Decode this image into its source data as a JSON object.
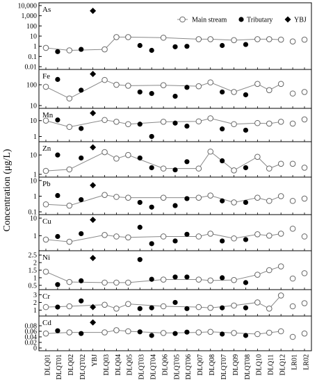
{
  "chart_data": {
    "type": "scatter",
    "ylabel": "Concentration (μg/L)",
    "legend_position": "top-right",
    "legend": [
      {
        "name": "Main stream",
        "marker": "open-circle-line"
      },
      {
        "name": "Tributary",
        "marker": "filled-circle"
      },
      {
        "name": "YBJ",
        "marker": "filled-diamond"
      }
    ],
    "x_labels": [
      "DLQ01",
      "DLQT01",
      "DLQ02",
      "DLQT02",
      "YBJ",
      "DLQ03",
      "DLQ04",
      "DLQ05",
      "DLQT03",
      "DLQT04",
      "DLQ06",
      "DLQT05",
      "DLQT06",
      "DLQ07",
      "DLQ08",
      "DLQT07",
      "DLQ09",
      "DLQT08",
      "DLQ10",
      "DLQ11",
      "DLQ12",
      "LR01",
      "LR02"
    ],
    "main_stream_positions": [
      "DLQ01",
      "DLQ02",
      "DLQ03",
      "DLQ04",
      "DLQ05",
      "DLQ06",
      "DLQ07",
      "DLQ08",
      "DLQ09",
      "DLQ10",
      "DLQ11",
      "DLQ12"
    ],
    "lr_positions": [
      "LR01",
      "LR02"
    ],
    "tributary_positions": [
      "DLQT01",
      "DLQT02",
      "DLQT03",
      "DLQT04",
      "DLQT05",
      "DLQT06",
      "DLQT07",
      "DLQT08"
    ],
    "ybj_position": "YBJ",
    "x_slots": [
      1,
      2,
      3,
      4,
      5,
      6,
      7,
      8,
      9,
      10,
      11,
      12,
      13,
      14,
      15,
      16,
      17,
      18,
      19,
      20,
      21,
      22,
      23
    ],
    "panels": [
      {
        "element": "As",
        "scale": "log",
        "ylim": [
          0.01,
          10000
        ],
        "ticks": [
          0.01,
          0.1,
          1,
          10,
          100,
          1000,
          10000
        ],
        "tick_labels": [
          "0.01",
          "0.1",
          "1",
          "10",
          "100",
          "1,000",
          "10,000"
        ],
        "main_stream": [
          {
            "x": 1,
            "y": 0.7
          },
          {
            "x": 3,
            "y": 0.4
          },
          {
            "x": 6,
            "y": 0.5
          },
          {
            "x": 7,
            "y": 8
          },
          {
            "x": 8,
            "y": 8
          },
          {
            "x": 11,
            "y": 7
          },
          {
            "x": 14,
            "y": 5
          },
          {
            "x": 15,
            "y": 5
          },
          {
            "x": 17,
            "y": 4
          },
          {
            "x": 19,
            "y": 5
          },
          {
            "x": 20,
            "y": 5
          },
          {
            "x": 21,
            "y": 4.5
          }
        ],
        "lr": [
          {
            "x": 22,
            "y": 3
          },
          {
            "x": 23,
            "y": 4.5
          }
        ],
        "tributary": [
          {
            "x": 2,
            "y": 0.3
          },
          {
            "x": 4,
            "y": 0.5
          },
          {
            "x": 9,
            "y": 1.2
          },
          {
            "x": 10,
            "y": 0.4
          },
          {
            "x": 12,
            "y": 0.9
          },
          {
            "x": 13,
            "y": 1
          },
          {
            "x": 16,
            "y": 1.2
          },
          {
            "x": 18,
            "y": 1.5
          }
        ],
        "ybj": {
          "x": 5,
          "y": 3000
        }
      },
      {
        "element": "Fe",
        "scale": "log",
        "ylim": [
          10,
          400
        ],
        "ticks": [
          10,
          100
        ],
        "tick_labels": [
          "10",
          "100"
        ],
        "main_stream": [
          {
            "x": 1,
            "y": 80
          },
          {
            "x": 3,
            "y": 22
          },
          {
            "x": 6,
            "y": 170
          },
          {
            "x": 7,
            "y": 100
          },
          {
            "x": 8,
            "y": 90
          },
          {
            "x": 11,
            "y": 95
          },
          {
            "x": 14,
            "y": 85
          },
          {
            "x": 15,
            "y": 130
          },
          {
            "x": 17,
            "y": 45
          },
          {
            "x": 19,
            "y": 110
          },
          {
            "x": 20,
            "y": 55
          },
          {
            "x": 21,
            "y": 110
          }
        ],
        "lr": [
          {
            "x": 22,
            "y": 38
          },
          {
            "x": 23,
            "y": 45
          }
        ],
        "tributary": [
          {
            "x": 2,
            "y": 180
          },
          {
            "x": 4,
            "y": 55
          },
          {
            "x": 9,
            "y": 45
          },
          {
            "x": 10,
            "y": 38
          },
          {
            "x": 12,
            "y": 28
          },
          {
            "x": 13,
            "y": 75
          },
          {
            "x": 16,
            "y": 45
          },
          {
            "x": 18,
            "y": 33
          }
        ],
        "ybj": {
          "x": 5,
          "y": 330
        }
      },
      {
        "element": "Mn",
        "scale": "log",
        "ylim": [
          0.7,
          40
        ],
        "ticks": [
          1,
          10
        ],
        "tick_labels": [
          "1",
          "10"
        ],
        "main_stream": [
          {
            "x": 1,
            "y": 10
          },
          {
            "x": 3,
            "y": 4
          },
          {
            "x": 6,
            "y": 11
          },
          {
            "x": 7,
            "y": 8.5
          },
          {
            "x": 8,
            "y": 6
          },
          {
            "x": 11,
            "y": 8.5
          },
          {
            "x": 14,
            "y": 9
          },
          {
            "x": 15,
            "y": 14
          },
          {
            "x": 17,
            "y": 6
          },
          {
            "x": 19,
            "y": 7
          },
          {
            "x": 20,
            "y": 6.5
          },
          {
            "x": 21,
            "y": 8.5
          }
        ],
        "lr": [
          {
            "x": 22,
            "y": 6.5
          },
          {
            "x": 23,
            "y": 12
          }
        ],
        "tributary": [
          {
            "x": 2,
            "y": 11
          },
          {
            "x": 4,
            "y": 3.2
          },
          {
            "x": 9,
            "y": 6
          },
          {
            "x": 10,
            "y": 1
          },
          {
            "x": 12,
            "y": 7
          },
          {
            "x": 13,
            "y": 4.5
          },
          {
            "x": 16,
            "y": 3
          },
          {
            "x": 18,
            "y": 2.5
          }
        ],
        "ybj": {
          "x": 5,
          "y": 30
        }
      },
      {
        "element": "Zn",
        "scale": "log",
        "ylim": [
          1,
          35
        ],
        "ticks": [
          1,
          10
        ],
        "tick_labels": [
          "1",
          "10"
        ],
        "main_stream": [
          {
            "x": 1,
            "y": 1.5
          },
          {
            "x": 3,
            "y": 1.8
          },
          {
            "x": 6,
            "y": 14
          },
          {
            "x": 7,
            "y": 6.5
          },
          {
            "x": 8,
            "y": 10
          },
          {
            "x": 11,
            "y": 2
          },
          {
            "x": 14,
            "y": 2
          },
          {
            "x": 15,
            "y": 15
          },
          {
            "x": 17,
            "y": 1.6
          },
          {
            "x": 19,
            "y": 8
          },
          {
            "x": 20,
            "y": 2
          },
          {
            "x": 21,
            "y": 3.5
          }
        ],
        "lr": [
          {
            "x": 22,
            "y": 3.5
          },
          {
            "x": 23,
            "y": 2.2
          }
        ],
        "tributary": [
          {
            "x": 2,
            "y": 10
          },
          {
            "x": 4,
            "y": 7
          },
          {
            "x": 9,
            "y": 7
          },
          {
            "x": 10,
            "y": 2.2
          },
          {
            "x": 12,
            "y": 1.7
          },
          {
            "x": 13,
            "y": 4.5
          },
          {
            "x": 16,
            "y": 5
          },
          {
            "x": 18,
            "y": 2.2
          }
        ],
        "ybj": {
          "x": 5,
          "y": 25
        }
      },
      {
        "element": "Pb",
        "scale": "log",
        "ylim": [
          0.1,
          11
        ],
        "ticks": [
          0.1,
          1,
          10
        ],
        "tick_labels": [
          "0.1",
          "1",
          "10"
        ],
        "main_stream": [
          {
            "x": 1,
            "y": 0.3
          },
          {
            "x": 3,
            "y": 0.25
          },
          {
            "x": 6,
            "y": 1.2
          },
          {
            "x": 7,
            "y": 0.9
          },
          {
            "x": 8,
            "y": 0.8
          },
          {
            "x": 11,
            "y": 0.8
          },
          {
            "x": 14,
            "y": 0.8
          },
          {
            "x": 15,
            "y": 1.1
          },
          {
            "x": 17,
            "y": 0.4
          },
          {
            "x": 19,
            "y": 0.8
          },
          {
            "x": 20,
            "y": 0.5
          },
          {
            "x": 21,
            "y": 1
          }
        ],
        "lr": [
          {
            "x": 22,
            "y": 0.5
          },
          {
            "x": 23,
            "y": 0.7
          }
        ],
        "tributary": [
          {
            "x": 2,
            "y": 1.1
          },
          {
            "x": 4,
            "y": 0.6
          },
          {
            "x": 9,
            "y": 0.4
          },
          {
            "x": 10,
            "y": 0.2
          },
          {
            "x": 12,
            "y": 0.25
          },
          {
            "x": 13,
            "y": 0.7
          },
          {
            "x": 16,
            "y": 0.5
          },
          {
            "x": 18,
            "y": 0.4
          }
        ],
        "ybj": {
          "x": 5,
          "y": 5
        }
      },
      {
        "element": "Cu",
        "scale": "log",
        "ylim": [
          0.2,
          11
        ],
        "ticks": [
          1,
          10
        ],
        "tick_labels": [
          "1",
          "10"
        ],
        "main_stream": [
          {
            "x": 1,
            "y": 0.6
          },
          {
            "x": 3,
            "y": 0.45
          },
          {
            "x": 6,
            "y": 1.1
          },
          {
            "x": 7,
            "y": 0.9
          },
          {
            "x": 8,
            "y": 0.8
          },
          {
            "x": 11,
            "y": 0.9
          },
          {
            "x": 14,
            "y": 0.9
          },
          {
            "x": 15,
            "y": 1.3
          },
          {
            "x": 17,
            "y": 0.7
          },
          {
            "x": 19,
            "y": 1.2
          },
          {
            "x": 20,
            "y": 1
          },
          {
            "x": 21,
            "y": 1.3
          }
        ],
        "lr": [
          {
            "x": 22,
            "y": 2.5
          },
          {
            "x": 23,
            "y": 0.9
          }
        ],
        "tributary": [
          {
            "x": 2,
            "y": 0.9
          },
          {
            "x": 4,
            "y": 1.3
          },
          {
            "x": 9,
            "y": 3
          },
          {
            "x": 10,
            "y": 0.35
          },
          {
            "x": 12,
            "y": 0.5
          },
          {
            "x": 13,
            "y": 1.2
          },
          {
            "x": 16,
            "y": 0.5
          },
          {
            "x": 18,
            "y": 0.6
          }
        ],
        "ybj": {
          "x": 5,
          "y": 8
        }
      },
      {
        "element": "Ni",
        "scale": "linear",
        "ylim": [
          0.4,
          2.6
        ],
        "ticks": [
          0.5,
          1,
          1.5,
          2,
          2.5
        ],
        "tick_labels": [
          "0.5",
          "1",
          "1.5",
          "2",
          "2.5"
        ],
        "main_stream": [
          {
            "x": 1,
            "y": 1.4
          },
          {
            "x": 3,
            "y": 0.72
          },
          {
            "x": 6,
            "y": 0.68
          },
          {
            "x": 7,
            "y": 0.68
          },
          {
            "x": 8,
            "y": 0.68
          },
          {
            "x": 11,
            "y": 0.88
          },
          {
            "x": 14,
            "y": 0.88
          },
          {
            "x": 15,
            "y": 0.82
          },
          {
            "x": 17,
            "y": 0.85
          },
          {
            "x": 19,
            "y": 1.2
          },
          {
            "x": 20,
            "y": 1.5
          },
          {
            "x": 21,
            "y": 1.75
          }
        ],
        "lr": [
          {
            "x": 22,
            "y": 0.95
          },
          {
            "x": 23,
            "y": 1.3
          }
        ],
        "tributary": [
          {
            "x": 2,
            "y": 0.55
          },
          {
            "x": 4,
            "y": 0.8
          },
          {
            "x": 9,
            "y": 2.2
          },
          {
            "x": 10,
            "y": 0.9
          },
          {
            "x": 12,
            "y": 1.05
          },
          {
            "x": 13,
            "y": 1.05
          },
          {
            "x": 16,
            "y": 1
          },
          {
            "x": 18,
            "y": 0.68
          }
        ],
        "ybj": {
          "x": 5,
          "y": 2.3
        }
      },
      {
        "element": "Cr",
        "scale": "linear",
        "ylim": [
          0.6,
          3.3
        ],
        "ticks": [
          1,
          2,
          3
        ],
        "tick_labels": [
          "1",
          "2",
          "3"
        ],
        "main_stream": [
          {
            "x": 1,
            "y": 1.4
          },
          {
            "x": 3,
            "y": 1.5
          },
          {
            "x": 6,
            "y": 1.7
          },
          {
            "x": 7,
            "y": 1.2
          },
          {
            "x": 8,
            "y": 1.8
          },
          {
            "x": 11,
            "y": 1.5
          },
          {
            "x": 14,
            "y": 1.4
          },
          {
            "x": 15,
            "y": 1.3
          },
          {
            "x": 17,
            "y": 1.6
          },
          {
            "x": 19,
            "y": 2
          },
          {
            "x": 20,
            "y": 1.2
          },
          {
            "x": 21,
            "y": 2.9
          }
        ],
        "lr": [
          {
            "x": 22,
            "y": 1.5
          },
          {
            "x": 23,
            "y": 1.9
          }
        ],
        "tributary": [
          {
            "x": 2,
            "y": 1.4
          },
          {
            "x": 4,
            "y": 2.2
          },
          {
            "x": 9,
            "y": 1.2
          },
          {
            "x": 10,
            "y": 1.3
          },
          {
            "x": 12,
            "y": 2
          },
          {
            "x": 13,
            "y": 1.2
          },
          {
            "x": 16,
            "y": 1.3
          },
          {
            "x": 18,
            "y": 1.3
          }
        ],
        "ybj": {
          "x": 5,
          "y": 1.4
        }
      },
      {
        "element": "Cd",
        "scale": "linear",
        "ylim": [
          0,
          0.105
        ],
        "ticks": [
          0,
          0.02,
          0.04,
          0.06,
          0.08
        ],
        "tick_labels": [
          "0",
          "0.02",
          "0.04",
          "0.06",
          "0.08"
        ],
        "main_stream": [
          {
            "x": 1,
            "y": 0.052
          },
          {
            "x": 3,
            "y": 0.056
          },
          {
            "x": 6,
            "y": 0.056
          },
          {
            "x": 7,
            "y": 0.064
          },
          {
            "x": 8,
            "y": 0.06
          },
          {
            "x": 11,
            "y": 0.054
          },
          {
            "x": 14,
            "y": 0.056
          },
          {
            "x": 15,
            "y": 0.058
          },
          {
            "x": 17,
            "y": 0.054
          },
          {
            "x": 19,
            "y": 0.05
          },
          {
            "x": 20,
            "y": 0.055
          },
          {
            "x": 21,
            "y": 0.06
          }
        ],
        "lr": [
          {
            "x": 22,
            "y": 0.04
          },
          {
            "x": 23,
            "y": 0.052
          }
        ],
        "tributary": [
          {
            "x": 2,
            "y": 0.062
          },
          {
            "x": 4,
            "y": 0.052
          },
          {
            "x": 9,
            "y": 0.058
          },
          {
            "x": 10,
            "y": 0.045
          },
          {
            "x": 12,
            "y": 0.052
          },
          {
            "x": 13,
            "y": 0.057
          },
          {
            "x": 16,
            "y": 0.05
          },
          {
            "x": 18,
            "y": 0.045
          }
        ],
        "ybj": {
          "x": 5,
          "y": 0.092
        }
      }
    ]
  }
}
